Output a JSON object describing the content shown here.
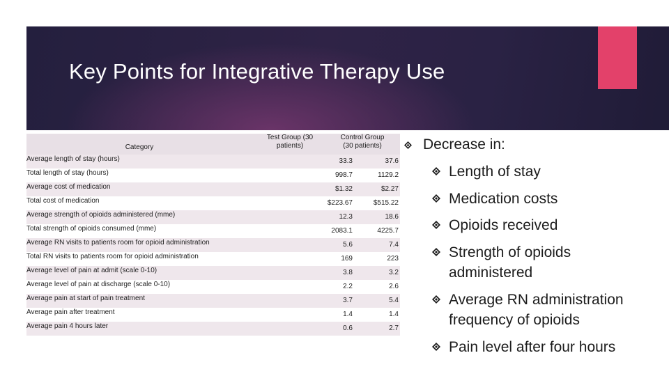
{
  "slide": {
    "title": "Key Points for Integrative Therapy Use"
  },
  "colors": {
    "banner": "#2a2244",
    "accent": "#e3416a",
    "row_shade": "#efe7ec"
  },
  "table": {
    "headers": {
      "category": "Category",
      "test": "Test Group (30 patients)",
      "control": "Control Group (30 patients)"
    },
    "rows": [
      {
        "label": "Average length of stay (hours)",
        "test": "33.3",
        "control": "37.6"
      },
      {
        "label": "Total length of stay (hours)",
        "test": "998.7",
        "control": "1129.2"
      },
      {
        "label": "Average cost of medication",
        "test": "$1.32",
        "control": "$2.27"
      },
      {
        "label": "Total cost of medication",
        "test": "$223.67",
        "control": "$515.22"
      },
      {
        "label": "Average strength of opioids administered (mme)",
        "test": "12.3",
        "control": "18.6"
      },
      {
        "label": "Total strength of opioids consumed (mme)",
        "test": "2083.1",
        "control": "4225.7"
      },
      {
        "label": "Average RN visits to patients room for opioid administration",
        "test": "5.6",
        "control": "7.4"
      },
      {
        "label": "Total RN visits to patients room for opioid administration",
        "test": "169",
        "control": "223"
      },
      {
        "label": "Average level of pain at admit (scale 0-10)",
        "test": "3.8",
        "control": "3.2"
      },
      {
        "label": "Average level of pain at discharge (scale 0-10)",
        "test": "2.2",
        "control": "2.6"
      },
      {
        "label": "Average pain at start of pain treatment",
        "test": "3.7",
        "control": "5.4"
      },
      {
        "label": "Average pain after treatment",
        "test": "1.4",
        "control": "1.4"
      },
      {
        "label": "Average pain 4 hours later",
        "test": "0.6",
        "control": "2.7"
      }
    ]
  },
  "bullets": {
    "heading": "Decrease in:",
    "bullet_icon": "diamond-bullet-icon",
    "items": [
      "Length of stay",
      "Medication costs",
      "Opioids received",
      "Strength of opioids administered",
      "Average RN administration frequency of opioids",
      "Pain level after four hours"
    ]
  }
}
